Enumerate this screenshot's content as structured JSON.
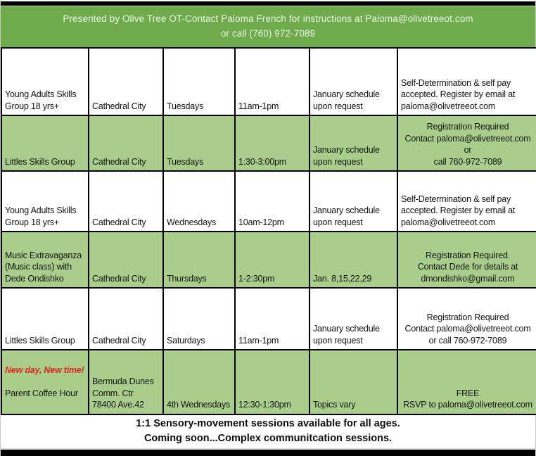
{
  "colors": {
    "banner_green": "#6dab4b",
    "row_green": "#a9ce8c",
    "banner_text": "#f2f6ec",
    "highlight_red": "#e3231a",
    "border_black": "#000000"
  },
  "banner": {
    "line1": "Presented by Olive Tree OT-Contact Paloma French for instructions at Paloma@olivetreeot.com",
    "line2": "or call (760) 972-7089"
  },
  "table": {
    "rows": [
      {
        "program": "Young Adults Skills\nGroup   18 yrs+",
        "location": "Cathedral City",
        "day": "Tuesdays",
        "time": "11am-1pm",
        "schedule": "January schedule\nupon request",
        "notes": "Self-Determination  & self pay\naccepted.  Register by email  at\npaloma@olivetreeot.com"
      },
      {
        "program": "Littles Skills Group",
        "location": "Cathedral City",
        "day": "Tuesdays",
        "time": "1:30-3:00pm",
        "schedule": "January schedule\nupon request",
        "notes": "Registration Required\nContact paloma@olivetreeot.com or\ncall 760-972-7089"
      },
      {
        "program": "Young Adults Skills\nGroup  18 yrs+",
        "location": "Cathedral City",
        "day": "Wednesdays",
        "time": "10am-12pm",
        "schedule": "January schedule\nupon request",
        "notes": "Self-Determination & self pay\naccepted.  Register by email  at\npaloma@olivetreeot.com"
      },
      {
        "program": "Music Extravaganza\n(Music class) with\nDede Ondishko",
        "location": "Cathedral City",
        "day": "Thursdays",
        "time": "1-2:30pm",
        "schedule": "Jan. 8,15,22,29",
        "notes": "Registration Required.\nContact Dede for details at\ndmondishko@gmail.com"
      },
      {
        "program": "Littles Skills Group",
        "location": "Cathedral City",
        "day": "Saturdays",
        "time": "11am-1pm",
        "schedule": "January schedule\nupon request",
        "notes": "Registration Required\nContact paloma@olivetreeot.com\nor call 760-972-7089"
      },
      {
        "program_highlight": "New day, New time!",
        "program": "Parent Coffee Hour",
        "location": "Bermuda Dunes\nComm. Ctr\n78400 Ave.42",
        "day": "4th Wednesdays",
        "time": "12:30-1:30pm",
        "schedule": "Topics vary",
        "notes": "FREE\nRSVP to paloma@olivetreeot.com"
      }
    ]
  },
  "footer": {
    "line1": "1:1 Sensory-movement sessions available for all ages.",
    "line2": "Coming soon...Complex communitcation sessions."
  }
}
